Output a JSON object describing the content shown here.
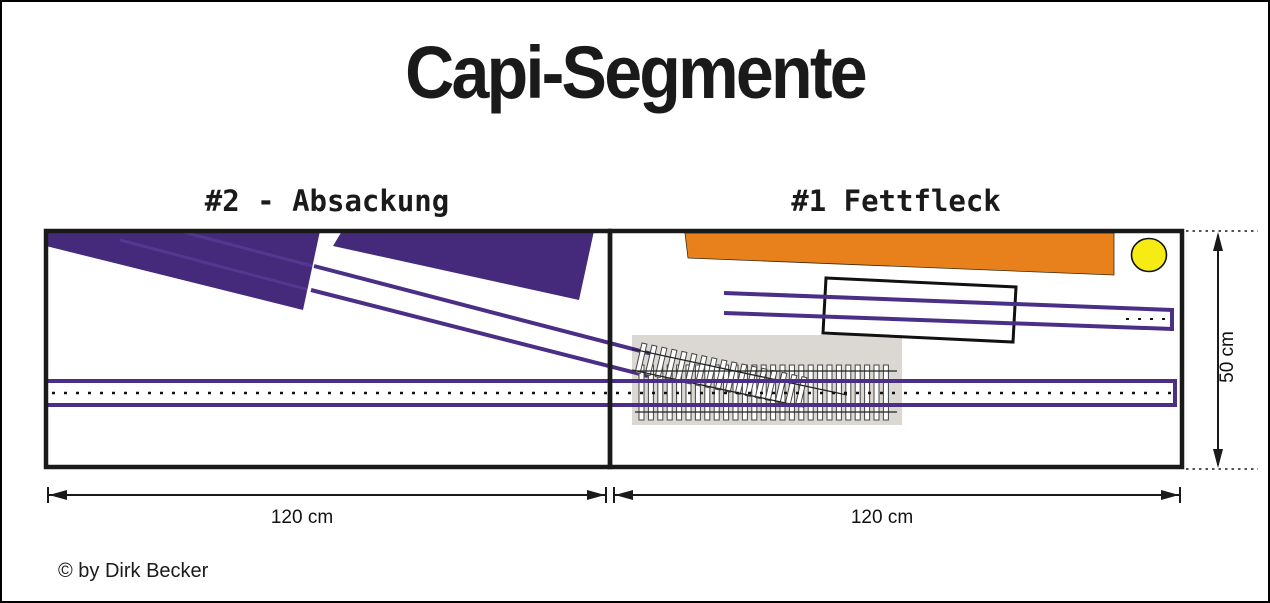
{
  "title": "Capi-Segmente",
  "credit": "© by Dirk Becker",
  "segments": {
    "left": {
      "label": "#2 - Absackung",
      "width": "120 cm"
    },
    "right": {
      "label": "#1 Fettfleck",
      "width": "120 cm"
    }
  },
  "dimensions": {
    "height": "50 cm"
  },
  "colors": {
    "embankment": "#452a7c",
    "track": "#4b2f86",
    "grease": "#e8811c",
    "sun": "#f6ec13",
    "turnout": "#dbd7d2",
    "outline": "#1a1a1a"
  }
}
